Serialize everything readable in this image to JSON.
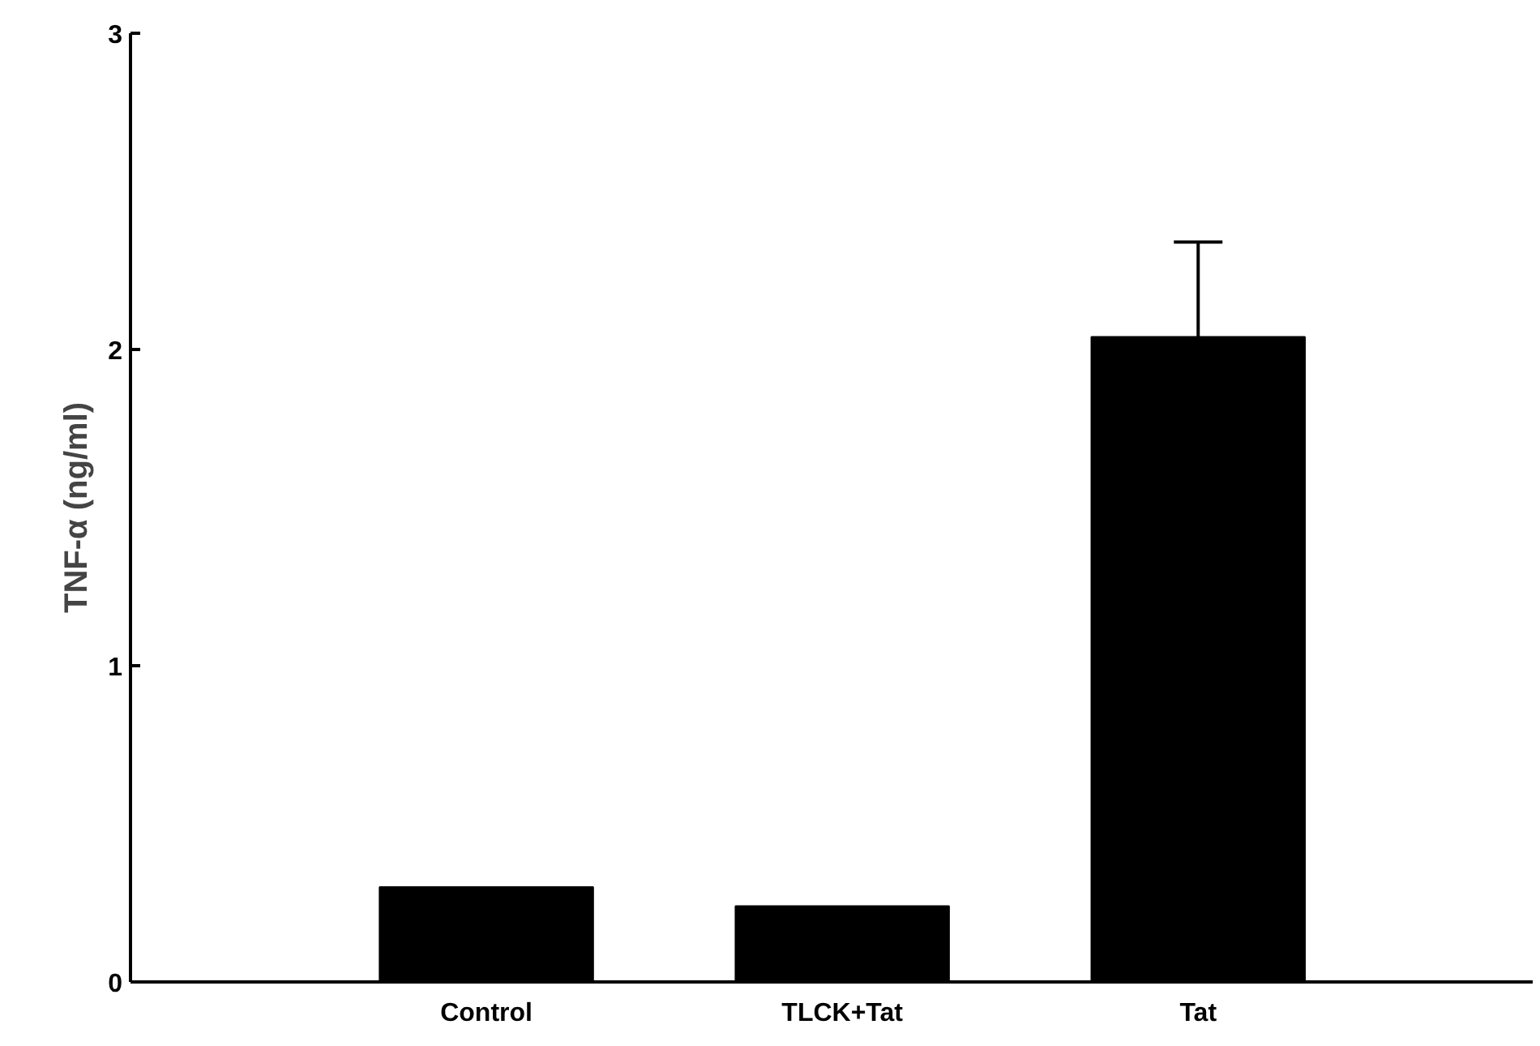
{
  "chart_data": {
    "type": "bar",
    "ylabel": "TNF-α (ng/ml)",
    "categories": [
      "Control",
      "TLCK+Tat",
      "Tat"
    ],
    "values": [
      0.3,
      0.24,
      2.04
    ],
    "errors": [
      null,
      null,
      0.3
    ],
    "color": "#000000",
    "ylim": [
      0,
      3
    ],
    "yticks": [
      0,
      1,
      2,
      3
    ],
    "grid": false
  }
}
